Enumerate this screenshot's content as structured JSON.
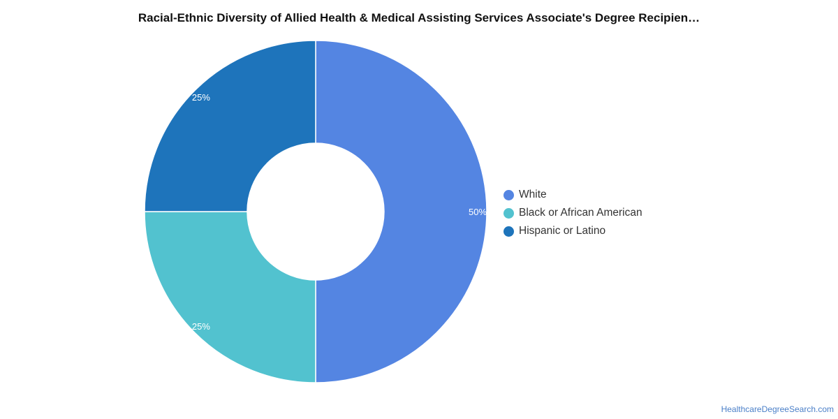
{
  "chart_data": {
    "type": "pie",
    "variant": "donut",
    "title": "Racial-Ethnic Diversity of Allied Health & Medical Assisting Services Associate's Degree Recipien…",
    "categories": [
      "White",
      "Black or African American",
      "Hispanic or Latino"
    ],
    "values": [
      50,
      25,
      25
    ],
    "labels": [
      "50%",
      "25%",
      "25%"
    ],
    "colors": [
      "#5485e2",
      "#52c2cf",
      "#1e74bb"
    ],
    "legend_position": "right"
  },
  "legend": [
    {
      "label": "White",
      "color": "#5485e2"
    },
    {
      "label": "Black or African American",
      "color": "#52c2cf"
    },
    {
      "label": "Hispanic or Latino",
      "color": "#1e74bb"
    }
  ],
  "footer": {
    "source": "HealthcareDegreeSearch.com"
  }
}
